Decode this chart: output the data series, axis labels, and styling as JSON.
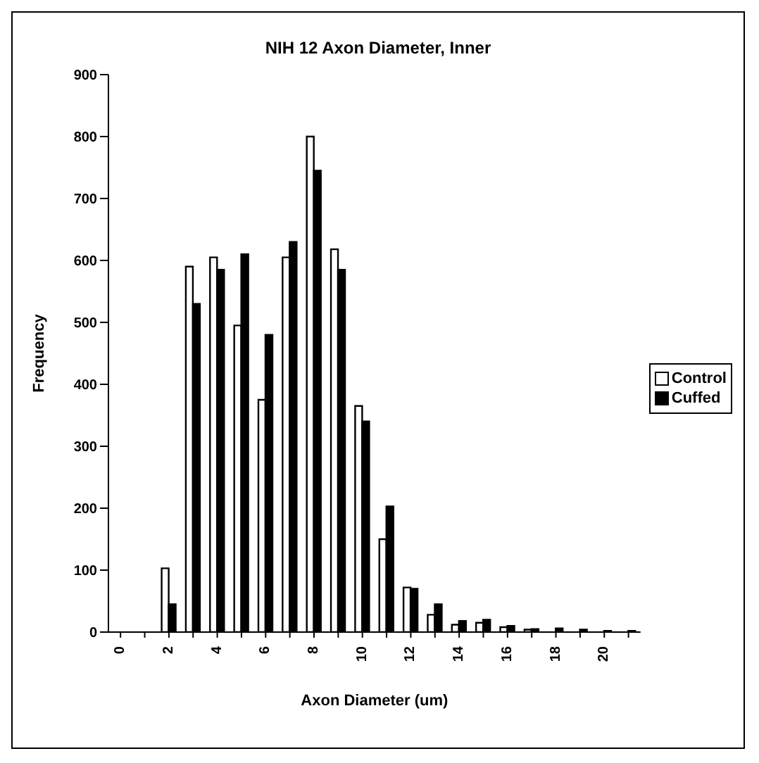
{
  "chart_data": {
    "type": "bar",
    "title": "NIH 12 Axon Diameter, Inner",
    "xlabel": "Axon Diameter (um)",
    "ylabel": "Frequency",
    "categories": [
      "0",
      null,
      "2",
      null,
      "4",
      null,
      "6",
      null,
      "8",
      null,
      "10",
      null,
      "12",
      null,
      "14",
      null,
      "16",
      null,
      "18",
      null,
      "20",
      null
    ],
    "series": [
      {
        "name": "Control",
        "color": "#ffffff",
        "values": [
          0,
          0,
          103,
          590,
          605,
          495,
          375,
          605,
          800,
          618,
          365,
          150,
          72,
          28,
          12,
          15,
          8,
          4,
          null,
          null,
          null,
          null
        ]
      },
      {
        "name": "Cuffed",
        "color": "#000000",
        "values": [
          0,
          0,
          45,
          530,
          585,
          610,
          480,
          630,
          745,
          585,
          340,
          203,
          70,
          45,
          18,
          20,
          10,
          5,
          6,
          4,
          2,
          2
        ]
      }
    ],
    "ylim": [
      0,
      900
    ],
    "yticks": [
      0,
      100,
      200,
      300,
      400,
      500,
      600,
      700,
      800,
      900
    ],
    "grid": false,
    "legend": "right"
  }
}
